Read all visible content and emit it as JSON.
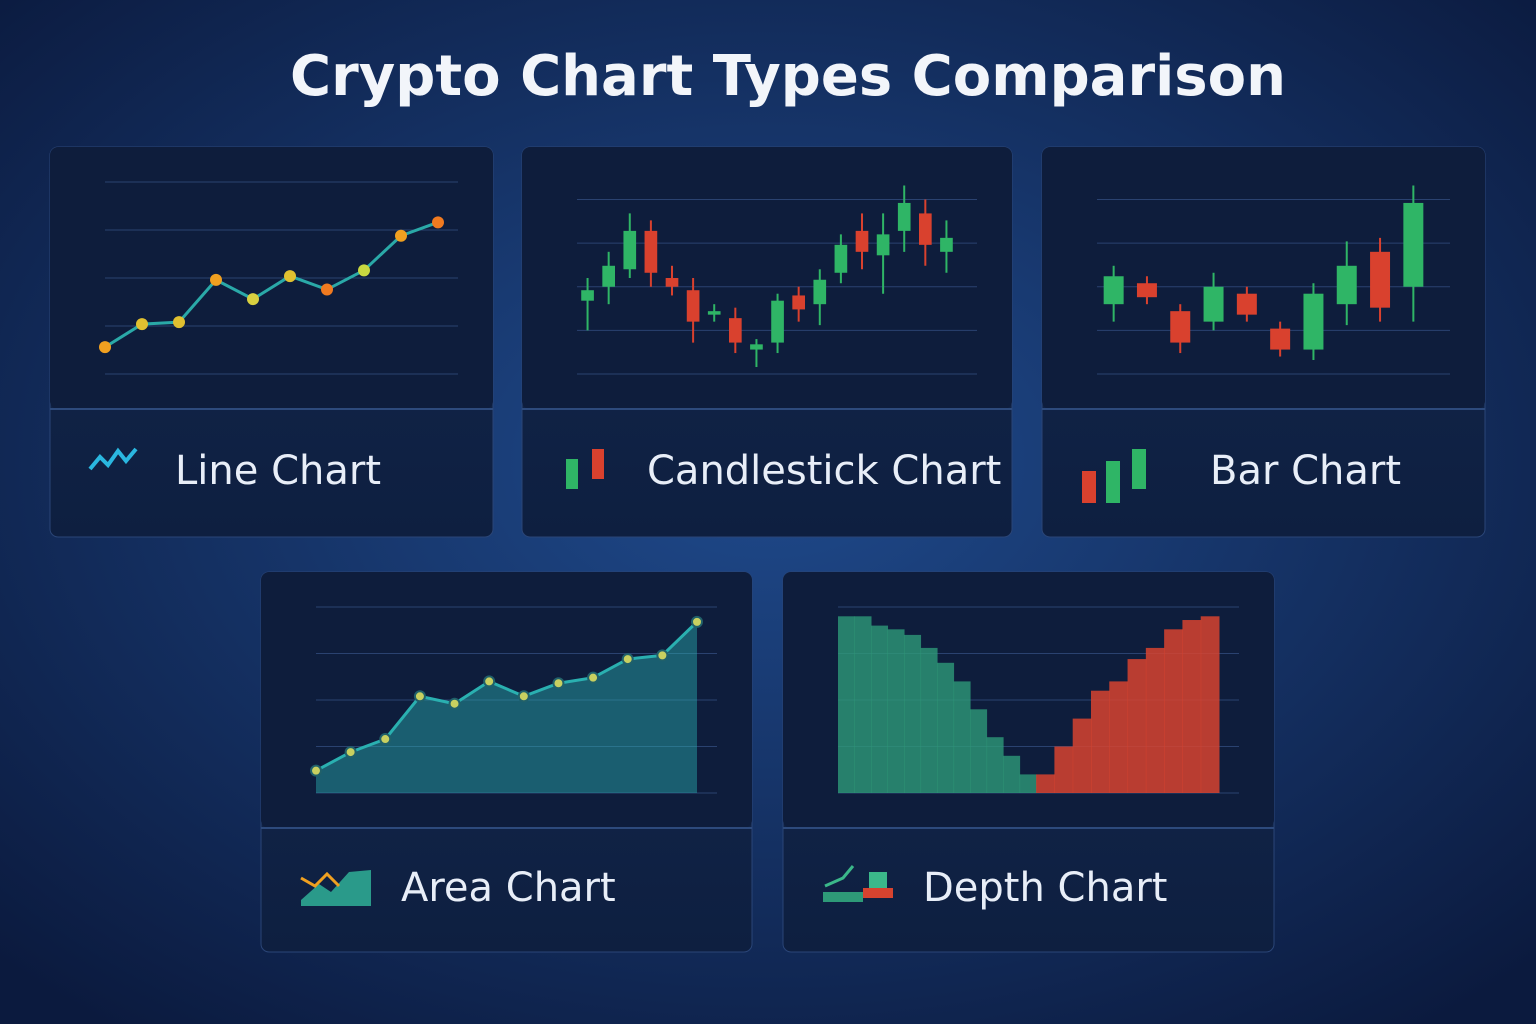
{
  "title": "Crypto Chart Types Comparison",
  "chart_data": [
    {
      "type": "line",
      "title": "Line Chart",
      "color": "#2aa9a8",
      "values": [
        14,
        26,
        27,
        49,
        39,
        51,
        44,
        54,
        72,
        79
      ],
      "marker_colors": [
        "#f0a020",
        "#e0c030",
        "#e0c030",
        "#f0a020",
        "#d8d040",
        "#e0c030",
        "#f07a20",
        "#c8d840",
        "#f0a020",
        "#f07a20"
      ],
      "ylim": [
        0,
        100
      ],
      "yticks": [
        0,
        25,
        50,
        75,
        100
      ],
      "grid": true
    },
    {
      "type": "candlestick",
      "title": "Candlestick Chart",
      "up_color": "#2fb566",
      "down_color": "#d9412e",
      "open": [
        42,
        50,
        60,
        82,
        55,
        48,
        34,
        32,
        14,
        18,
        45,
        40,
        58,
        82,
        68,
        82,
        92,
        70
      ],
      "high": [
        55,
        70,
        92,
        88,
        62,
        55,
        40,
        38,
        20,
        46,
        50,
        60,
        80,
        92,
        92,
        108,
        100,
        88
      ],
      "low": [
        25,
        40,
        55,
        50,
        45,
        18,
        30,
        12,
        4,
        12,
        30,
        28,
        52,
        60,
        46,
        70,
        62,
        58
      ],
      "close": [
        48,
        62,
        82,
        58,
        50,
        30,
        36,
        18,
        17,
        42,
        37,
        54,
        74,
        70,
        80,
        98,
        74,
        78
      ],
      "ylim": [
        0,
        110
      ],
      "yticks": [
        0,
        25,
        50,
        75,
        100
      ],
      "grid": true
    },
    {
      "type": "candlestick",
      "title": "Bar Chart",
      "up_color": "#2fb566",
      "down_color": "#d9412e",
      "open": [
        40,
        52,
        36,
        30,
        46,
        26,
        14,
        40,
        70,
        50
      ],
      "high": [
        62,
        56,
        40,
        58,
        50,
        30,
        52,
        76,
        78,
        108
      ],
      "low": [
        30,
        40,
        12,
        25,
        30,
        10,
        8,
        28,
        30,
        30
      ],
      "close": [
        56,
        44,
        18,
        50,
        34,
        14,
        46,
        62,
        38,
        98
      ],
      "ylim": [
        0,
        110
      ],
      "yticks": [
        0,
        25,
        50,
        75,
        100
      ],
      "grid": true
    },
    {
      "type": "area",
      "title": "Area Chart",
      "color": "#2ab0b0",
      "values": [
        12,
        22,
        29,
        52,
        48,
        60,
        52,
        59,
        62,
        72,
        74,
        92
      ],
      "ylim": [
        0,
        100
      ],
      "yticks": [
        0,
        25,
        50,
        75,
        100
      ],
      "grid": true
    },
    {
      "type": "depth",
      "title": "Depth Chart",
      "bid_color": "#2e9a78",
      "ask_color": "#d7432f",
      "bids": [
        95,
        95,
        90,
        88,
        85,
        78,
        70,
        60,
        45,
        30,
        20,
        10
      ],
      "asks": [
        10,
        25,
        40,
        55,
        60,
        72,
        78,
        88,
        93,
        95
      ],
      "ylim": [
        0,
        100
      ],
      "yticks": [
        0,
        25,
        50,
        75,
        100
      ],
      "grid": true
    }
  ]
}
